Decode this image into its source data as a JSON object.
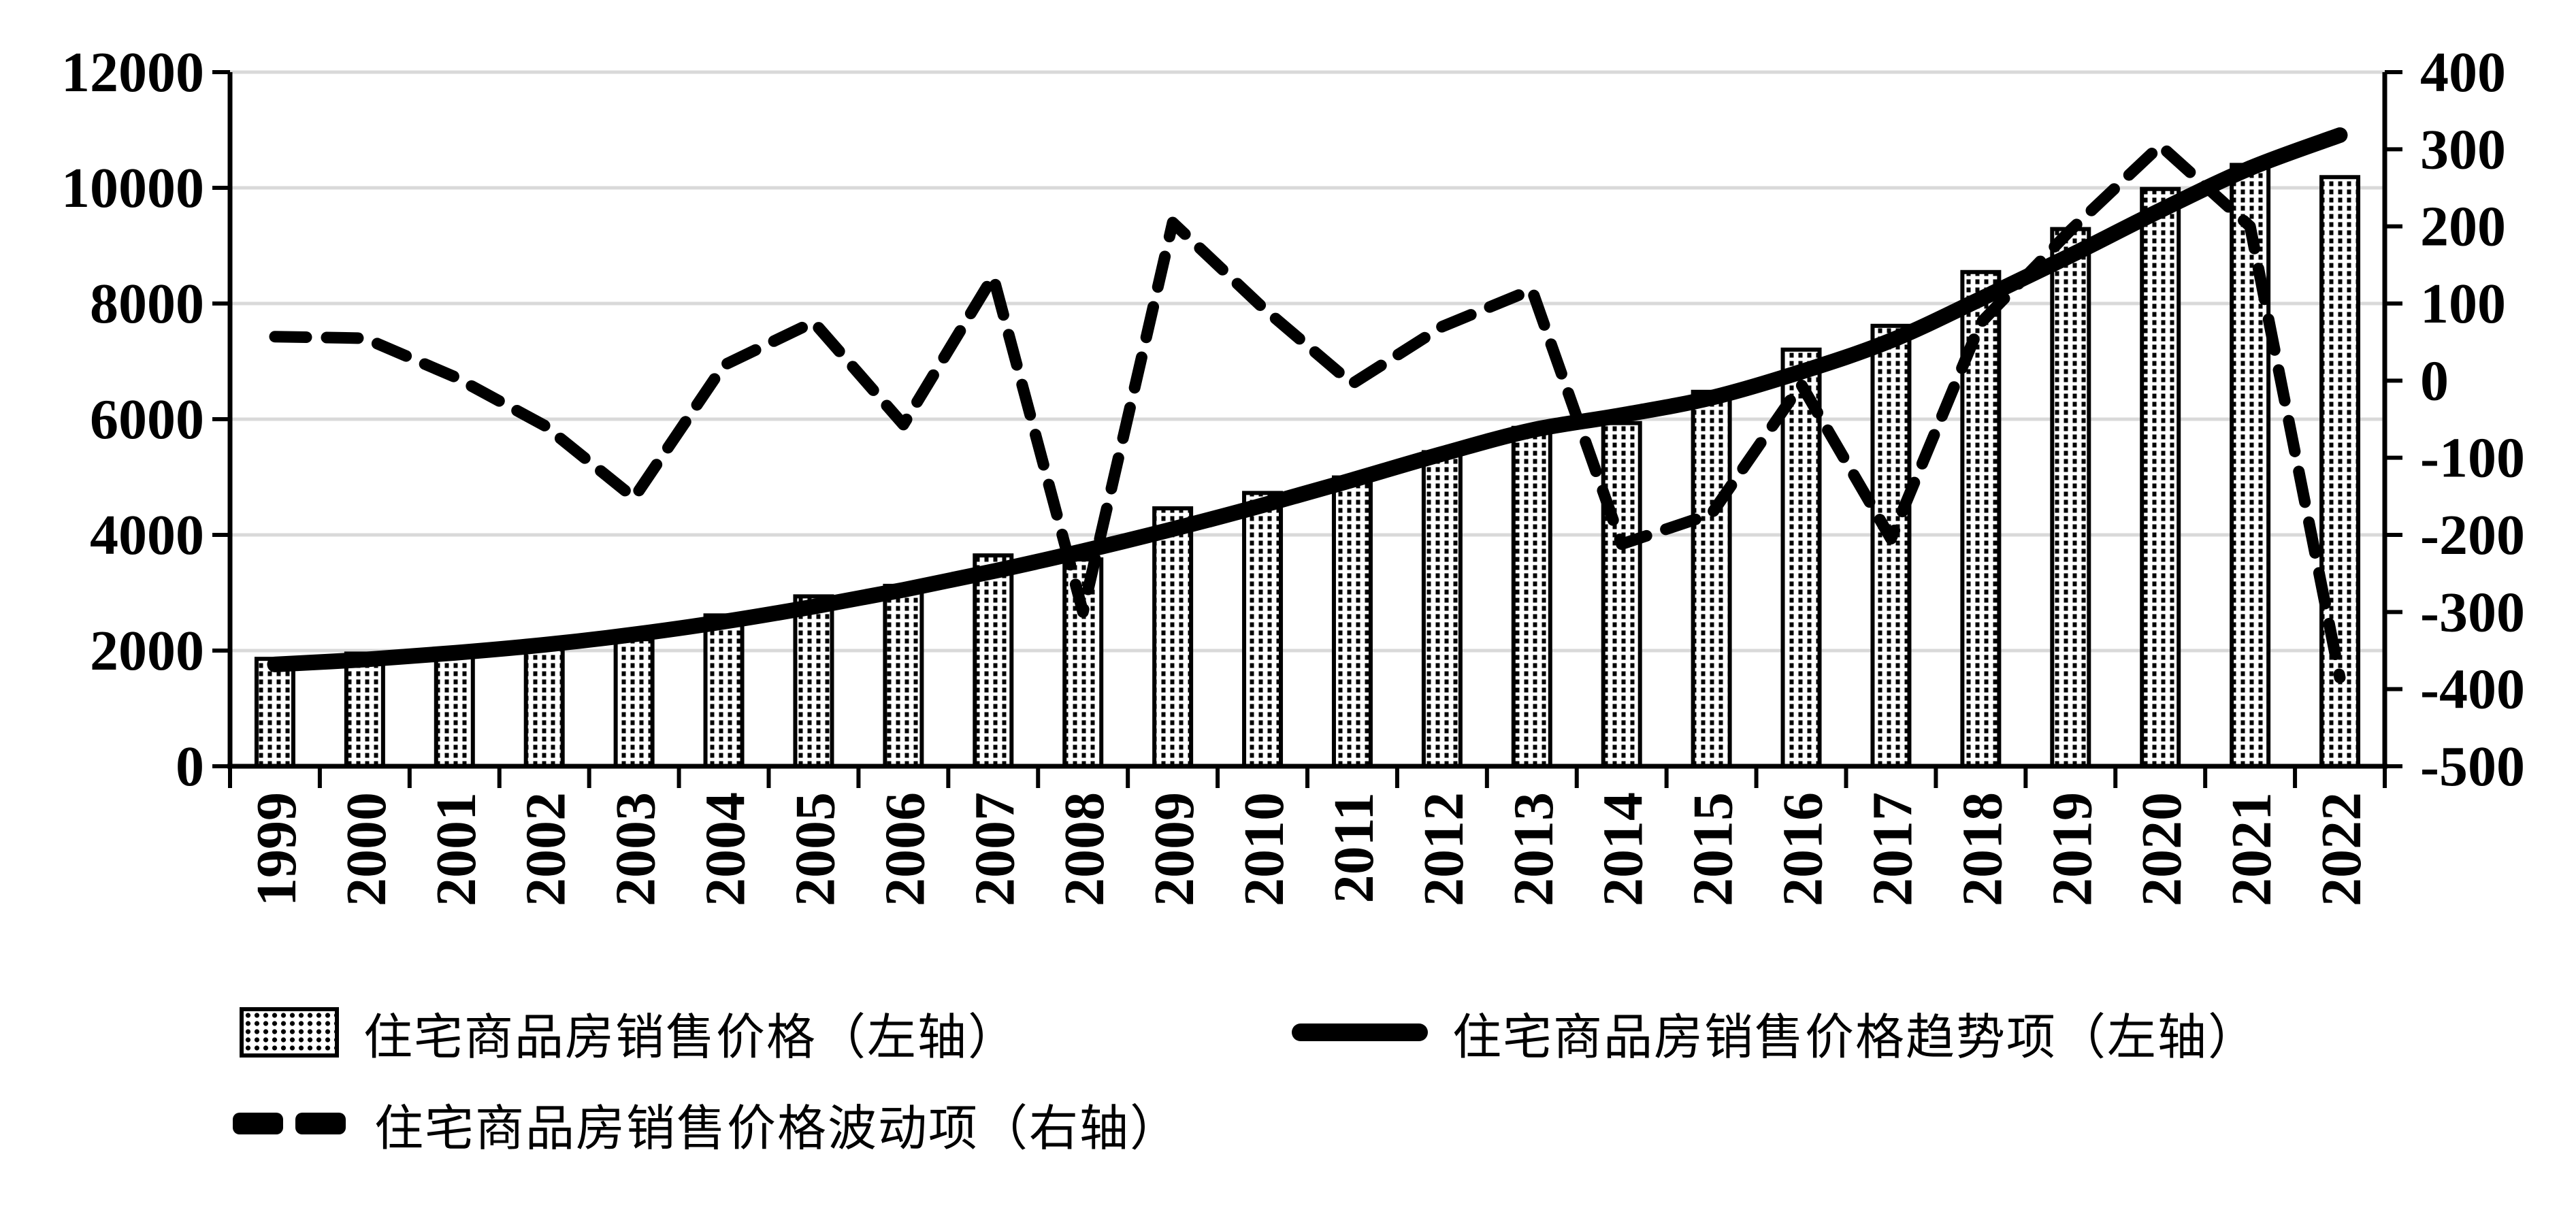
{
  "chart_data": {
    "type": "combo-bar-line",
    "categories": [
      "1999",
      "2000",
      "2001",
      "2002",
      "2003",
      "2004",
      "2005",
      "2006",
      "2007",
      "2008",
      "2009",
      "2010",
      "2011",
      "2012",
      "2013",
      "2014",
      "2015",
      "2016",
      "2017",
      "2018",
      "2019",
      "2020",
      "2021",
      "2022"
    ],
    "series": [
      {
        "name": "住宅商品房销售价格（左轴）",
        "type": "bar",
        "axis": "left",
        "swatch": "dotted-bar",
        "values": [
          1857,
          1948,
          2017,
          2092,
          2197,
          2608,
          2937,
          3119,
          3645,
          3576,
          4459,
          4725,
          4993,
          5430,
          5850,
          5933,
          6473,
          7203,
          7614,
          8544,
          9287,
          9980,
          10396,
          10185
        ]
      },
      {
        "name": "住宅商品房销售价格趋势项（左轴）",
        "type": "line",
        "line_style": "solid",
        "axis": "left",
        "swatch": "solid-line",
        "values": [
          1760,
          1845,
          1960,
          2100,
          2280,
          2500,
          2760,
          3050,
          3370,
          3720,
          4100,
          4510,
          4950,
          5400,
          5810,
          6070,
          6370,
          6820,
          7360,
          8080,
          8830,
          9610,
          10340,
          10910
        ]
      },
      {
        "name": "住宅商品房销售价格波动项（右轴）",
        "type": "line",
        "line_style": "dashed",
        "axis": "right",
        "swatch": "dashed-line",
        "values": [
          57,
          55,
          5,
          -58,
          -152,
          20,
          76,
          -57,
          135,
          -300,
          205,
          95,
          -4,
          70,
          118,
          -212,
          -173,
          -5,
          -205,
          75,
          195,
          305,
          200,
          -385
        ]
      }
    ],
    "left_axis": {
      "min": 0,
      "max": 12000,
      "step": 2000,
      "ticks": [
        0,
        2000,
        4000,
        6000,
        8000,
        10000,
        12000
      ]
    },
    "right_axis": {
      "min": -500,
      "max": 400,
      "step": 100,
      "ticks": [
        -500,
        -400,
        -300,
        -200,
        -100,
        0,
        100,
        200,
        300,
        400
      ]
    },
    "gridlines": {
      "show": true,
      "at_left_axis_ticks": [
        2000,
        4000,
        6000,
        8000,
        10000,
        12000
      ]
    },
    "legend_position": "bottom-left-two-rows",
    "colors": {
      "foreground": "#000000",
      "background": "#ffffff",
      "gridline": "#d9d9d9"
    }
  }
}
